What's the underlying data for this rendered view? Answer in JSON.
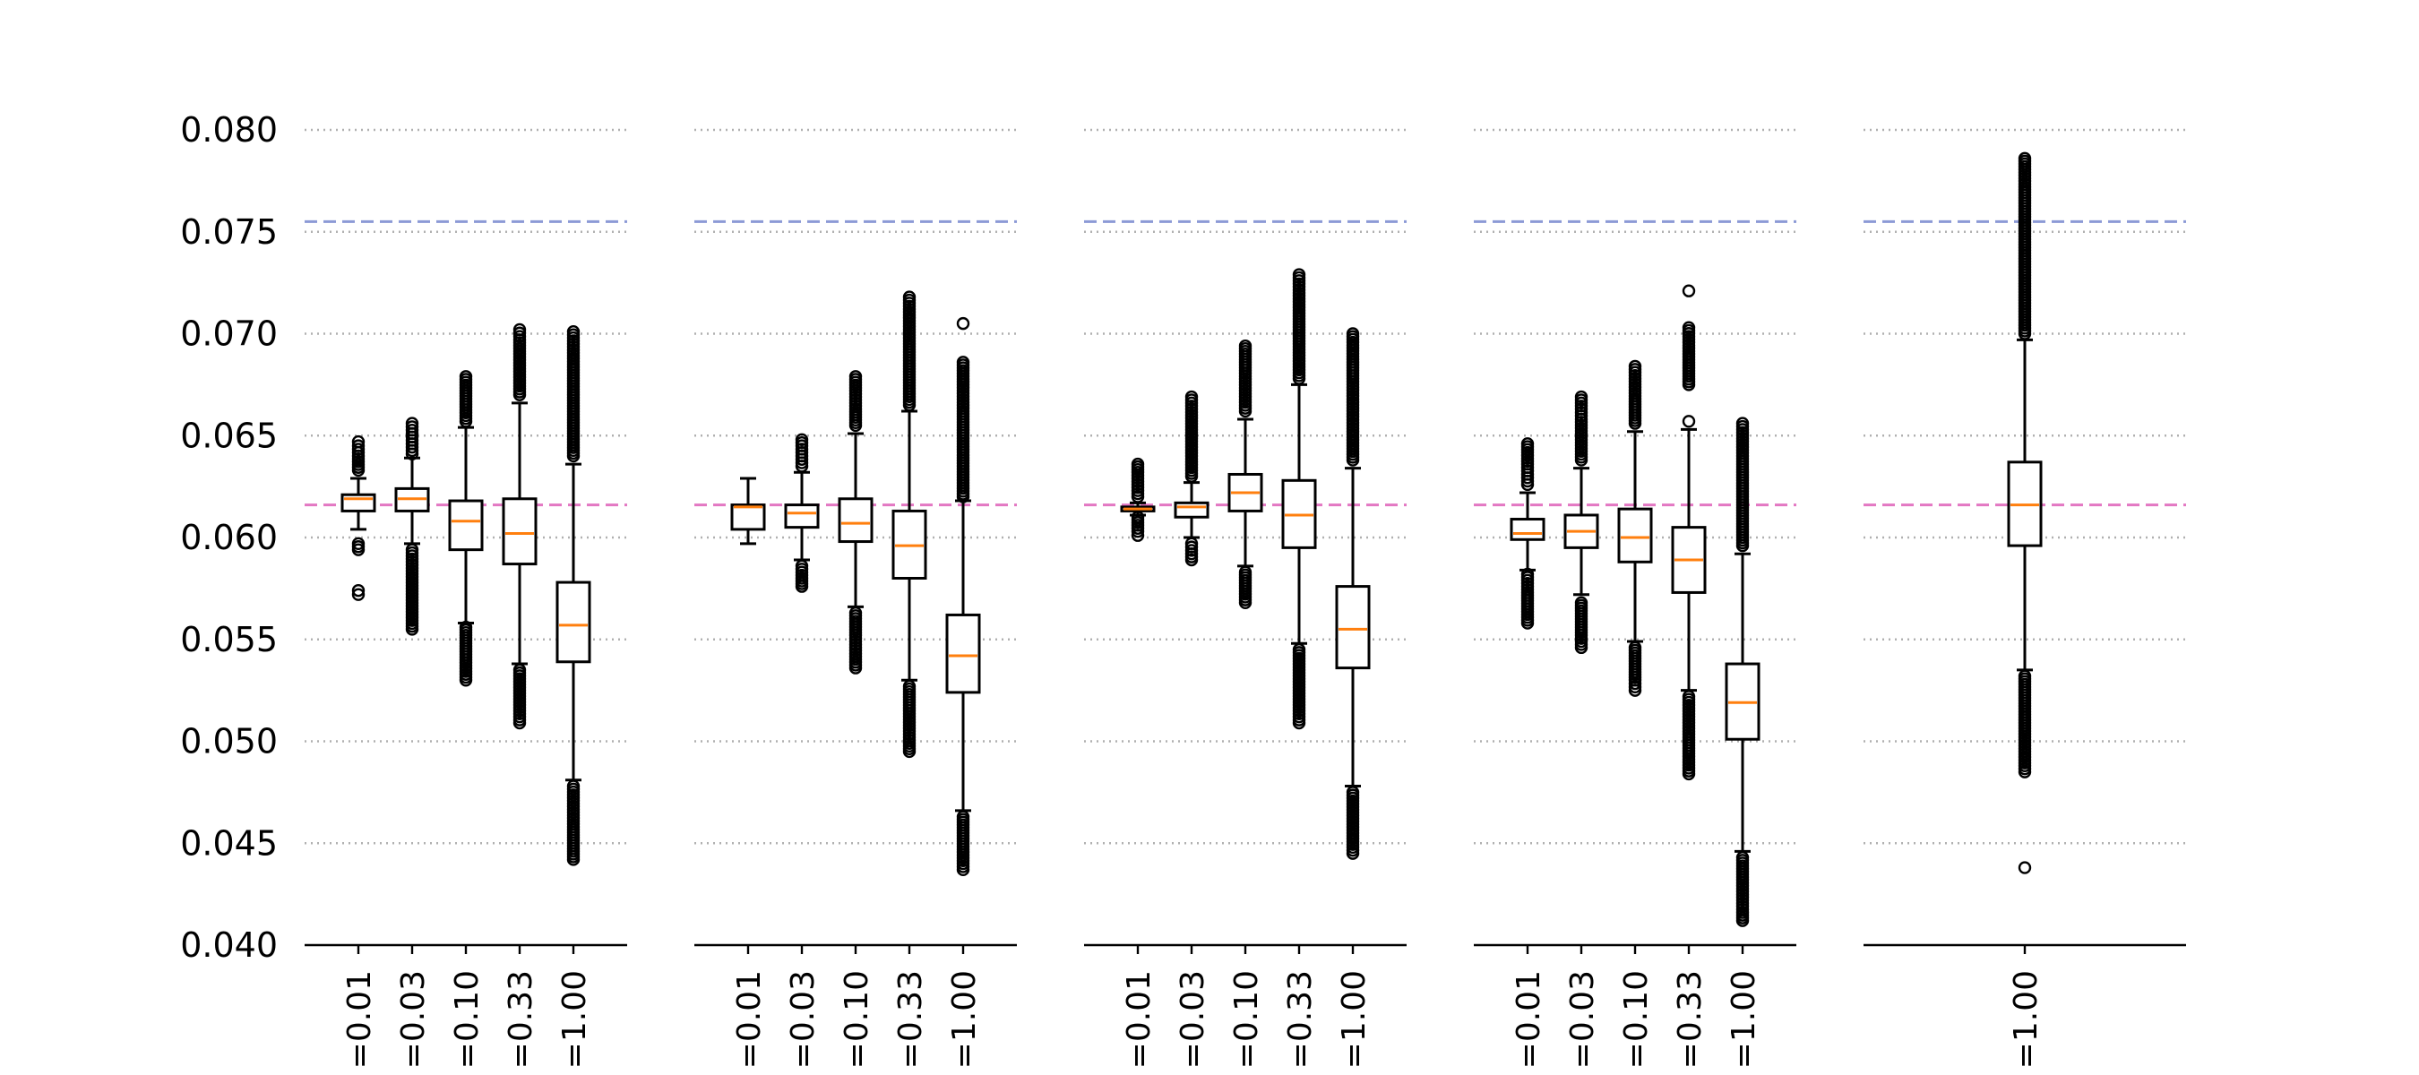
{
  "chart_data": {
    "type": "box",
    "title": "",
    "xlabel": "",
    "ylabel": "",
    "ylim": [
      0.04,
      0.08
    ],
    "yticks": [
      "0.040",
      "0.045",
      "0.050",
      "0.055",
      "0.060",
      "0.065",
      "0.070",
      "0.075",
      "0.080"
    ],
    "grid": "horizontal dotted",
    "reference_lines": [
      {
        "y": 0.0755,
        "color": "#8c9ad6",
        "style": "dashed"
      },
      {
        "y": 0.0616,
        "color": "#e377c2",
        "style": "dashed"
      }
    ],
    "colors": {
      "box": "#000000",
      "median": "#ff7f0e",
      "grid": "#b0b0b0"
    },
    "panels": [
      {
        "categories": [
          "=0.01",
          "=0.03",
          "=0.10",
          "=0.33",
          "=1.00"
        ],
        "boxes": [
          {
            "q1": 0.0613,
            "median": 0.0619,
            "q3": 0.0621,
            "whislo": 0.0604,
            "whishi": 0.0629,
            "fliers_low": [
              0.0574,
              0.0572,
              0.0594,
              0.0597
            ],
            "fliers_high": [
              0.0633,
              0.064,
              0.0645,
              0.0647
            ]
          },
          {
            "q1": 0.0613,
            "median": 0.0619,
            "q3": 0.0624,
            "whislo": 0.0597,
            "whishi": 0.0639,
            "fliers_low": [
              0.0594,
              0.0585,
              0.0575,
              0.0565,
              0.0555
            ],
            "fliers_high": [
              0.0641,
              0.0646,
              0.0651,
              0.0656
            ]
          },
          {
            "q1": 0.0594,
            "median": 0.0608,
            "q3": 0.0618,
            "whislo": 0.0558,
            "whishi": 0.0654,
            "fliers_low": [
              0.0556,
              0.0548,
              0.054,
              0.053
            ],
            "fliers_high": [
              0.0657,
              0.0664,
              0.0672,
              0.0679
            ]
          },
          {
            "q1": 0.0587,
            "median": 0.0602,
            "q3": 0.0619,
            "whislo": 0.0538,
            "whishi": 0.0666,
            "fliers_low": [
              0.0535,
              0.0525,
              0.0515,
              0.0509
            ],
            "fliers_high": [
              0.067,
              0.068,
              0.069,
              0.0697,
              0.0702
            ]
          },
          {
            "q1": 0.0539,
            "median": 0.0557,
            "q3": 0.0578,
            "whislo": 0.0481,
            "whishi": 0.0636,
            "fliers_low": [
              0.0478,
              0.0468,
              0.0458,
              0.045,
              0.0442
            ],
            "fliers_high": [
              0.064,
              0.0655,
              0.067,
              0.0685,
              0.0692,
              0.0701
            ]
          }
        ]
      },
      {
        "categories": [
          "=0.01",
          "=0.03",
          "=0.10",
          "=0.33",
          "=1.00"
        ],
        "boxes": [
          {
            "q1": 0.0604,
            "median": 0.0615,
            "q3": 0.0616,
            "whislo": 0.0597,
            "whishi": 0.0629,
            "fliers_low": [],
            "fliers_high": []
          },
          {
            "q1": 0.0605,
            "median": 0.0612,
            "q3": 0.0616,
            "whislo": 0.0589,
            "whishi": 0.0632,
            "fliers_low": [
              0.0586,
              0.058,
              0.0576
            ],
            "fliers_high": [
              0.0635,
              0.064,
              0.0645,
              0.0648
            ]
          },
          {
            "q1": 0.0598,
            "median": 0.0607,
            "q3": 0.0619,
            "whislo": 0.0566,
            "whishi": 0.0651,
            "fliers_low": [
              0.0563,
              0.0552,
              0.0543,
              0.0536
            ],
            "fliers_high": [
              0.0655,
              0.0663,
              0.0672,
              0.0679
            ]
          },
          {
            "q1": 0.058,
            "median": 0.0596,
            "q3": 0.0613,
            "whislo": 0.053,
            "whishi": 0.0662,
            "fliers_low": [
              0.0527,
              0.0515,
              0.0505,
              0.0499,
              0.0495
            ],
            "fliers_high": [
              0.0665,
              0.068,
              0.0695,
              0.0705,
              0.0712,
              0.0718
            ]
          },
          {
            "q1": 0.0524,
            "median": 0.0542,
            "q3": 0.0562,
            "whislo": 0.0466,
            "whishi": 0.0618,
            "fliers_low": [
              0.0463,
              0.0455,
              0.0447,
              0.044,
              0.0437
            ],
            "fliers_high": [
              0.062,
              0.0635,
              0.065,
              0.0662,
              0.0675,
              0.0686,
              0.0705
            ]
          }
        ]
      },
      {
        "categories": [
          "=0.01",
          "=0.03",
          "=0.10",
          "=0.33",
          "=1.00"
        ],
        "boxes": [
          {
            "q1": 0.0613,
            "median": 0.0614,
            "q3": 0.0615,
            "whislo": 0.0611,
            "whishi": 0.0617,
            "fliers_low": [
              0.061,
              0.0606,
              0.0603,
              0.0601
            ],
            "fliers_high": [
              0.062,
              0.0626,
              0.0632,
              0.0636
            ]
          },
          {
            "q1": 0.061,
            "median": 0.0615,
            "q3": 0.0617,
            "whislo": 0.06,
            "whishi": 0.0627,
            "fliers_low": [
              0.0597,
              0.0592,
              0.0589
            ],
            "fliers_high": [
              0.063,
              0.064,
              0.065,
              0.066,
              0.0669
            ]
          },
          {
            "q1": 0.0613,
            "median": 0.0622,
            "q3": 0.0631,
            "whislo": 0.0586,
            "whishi": 0.0658,
            "fliers_low": [
              0.0583,
              0.0575,
              0.0568
            ],
            "fliers_high": [
              0.0662,
              0.0672,
              0.0682,
              0.069,
              0.0694
            ]
          },
          {
            "q1": 0.0595,
            "median": 0.0611,
            "q3": 0.0628,
            "whislo": 0.0548,
            "whishi": 0.0675,
            "fliers_low": [
              0.0545,
              0.0535,
              0.0525,
              0.0515,
              0.0509
            ],
            "fliers_high": [
              0.0678,
              0.0695,
              0.071,
              0.072,
              0.0729
            ]
          },
          {
            "q1": 0.0536,
            "median": 0.0555,
            "q3": 0.0576,
            "whislo": 0.0478,
            "whishi": 0.0634,
            "fliers_low": [
              0.0475,
              0.0465,
              0.0455,
              0.0448,
              0.0445
            ],
            "fliers_high": [
              0.0638,
              0.0652,
              0.0665,
              0.0678,
              0.0686,
              0.07
            ]
          }
        ]
      },
      {
        "categories": [
          "=0.01",
          "=0.03",
          "=0.10",
          "=0.33",
          "=1.00"
        ],
        "boxes": [
          {
            "q1": 0.0599,
            "median": 0.0602,
            "q3": 0.0609,
            "whislo": 0.0584,
            "whishi": 0.0622,
            "fliers_low": [
              0.0582,
              0.0573,
              0.0565,
              0.0558
            ],
            "fliers_high": [
              0.0626,
              0.0631,
              0.0636,
              0.0646
            ]
          },
          {
            "q1": 0.0595,
            "median": 0.0603,
            "q3": 0.0611,
            "whislo": 0.0572,
            "whishi": 0.0634,
            "fliers_low": [
              0.0568,
              0.056,
              0.0552,
              0.0546
            ],
            "fliers_high": [
              0.0638,
              0.0648,
              0.0658,
              0.0663,
              0.0669
            ]
          },
          {
            "q1": 0.0588,
            "median": 0.06,
            "q3": 0.0614,
            "whislo": 0.0549,
            "whishi": 0.0652,
            "fliers_low": [
              0.0546,
              0.0538,
              0.053,
              0.0525
            ],
            "fliers_high": [
              0.0656,
              0.0668,
              0.0678,
              0.0684
            ]
          },
          {
            "q1": 0.0573,
            "median": 0.0589,
            "q3": 0.0605,
            "whislo": 0.0525,
            "whishi": 0.0653,
            "fliers_low": [
              0.0522,
              0.0512,
              0.0502,
              0.0494,
              0.0484
            ],
            "fliers_high": [
              0.0657,
              0.0675,
              0.069,
              0.0703,
              0.0721
            ]
          },
          {
            "q1": 0.0501,
            "median": 0.0519,
            "q3": 0.0538,
            "whislo": 0.0446,
            "whishi": 0.0592,
            "fliers_low": [
              0.0443,
              0.0432,
              0.0422,
              0.0416,
              0.0412
            ],
            "fliers_high": [
              0.0596,
              0.0612,
              0.0628,
              0.064,
              0.065,
              0.0656
            ]
          }
        ]
      },
      {
        "categories": [
          "=1.00"
        ],
        "boxes": [
          {
            "q1": 0.0596,
            "median": 0.0616,
            "q3": 0.0637,
            "whislo": 0.0535,
            "whishi": 0.0697,
            "fliers_low": [
              0.0532,
              0.052,
              0.0505,
              0.0495,
              0.0488,
              0.0485,
              0.0438
            ],
            "fliers_high": [
              0.07,
              0.0715,
              0.073,
              0.0745,
              0.076,
              0.0772,
              0.0782,
              0.0786
            ]
          }
        ]
      }
    ]
  }
}
